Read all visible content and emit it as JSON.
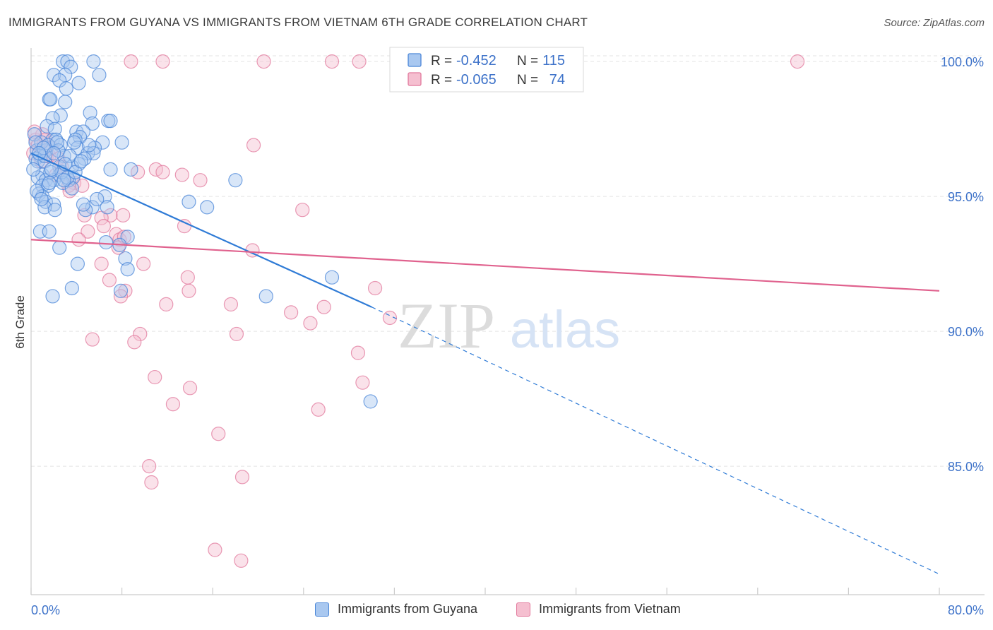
{
  "header": {
    "title": "IMMIGRANTS FROM GUYANA VS IMMIGRANTS FROM VIETNAM 6TH GRADE CORRELATION CHART",
    "source": "Source: ZipAtlas.com"
  },
  "watermark": {
    "zip": "ZIP",
    "atlas": "atlas"
  },
  "colors": {
    "blue": "#4a86d8",
    "blue_fill": "#a9c8f0",
    "blue_line": "#2f7bd6",
    "pink": "#e2789c",
    "pink_fill": "#f5bfd0",
    "pink_line": "#e0628e",
    "tick_label": "#3d72c9"
  },
  "stats_legend": {
    "r_label": "R =",
    "n_label": "N =",
    "rows": [
      {
        "series": "guyana",
        "r": "-0.452",
        "n": "115"
      },
      {
        "series": "vietnam",
        "r": "-0.065",
        "n": "74"
      }
    ]
  },
  "chart_data": {
    "type": "scatter",
    "title": "IMMIGRANTS FROM GUYANA VS IMMIGRANTS FROM VIETNAM 6TH GRADE CORRELATION CHART",
    "xlabel": "",
    "ylabel": "6th Grade",
    "xlim": [
      0,
      80
    ],
    "ylim": [
      80.5,
      100.5
    ],
    "x_tick_labels": {
      "min": "0.0%",
      "max": "80.0%"
    },
    "y_ticks": [
      {
        "value": 85,
        "label": "85.0%"
      },
      {
        "value": 90,
        "label": "90.0%"
      },
      {
        "value": 95,
        "label": "95.0%"
      },
      {
        "value": 100,
        "label": "100.0%"
      }
    ],
    "grid": "horizontal dashed",
    "series": [
      {
        "name": "Immigrants from Guyana",
        "key": "guyana",
        "r": -0.452,
        "n": 115,
        "trend": {
          "x0": 0,
          "y0": 96.6,
          "x1": 30,
          "y1": 90.9,
          "dashed_to": {
            "x": 80,
            "y": 81.0
          }
        },
        "points": [
          [
            2.8,
            100.0
          ],
          [
            3.2,
            100.0
          ],
          [
            5.5,
            100.0
          ],
          [
            3.5,
            99.8
          ],
          [
            2.0,
            99.5
          ],
          [
            3.0,
            99.5
          ],
          [
            6.0,
            99.5
          ],
          [
            2.5,
            99.3
          ],
          [
            4.2,
            99.2
          ],
          [
            3.1,
            99.0
          ],
          [
            1.6,
            98.6
          ],
          [
            1.7,
            98.6
          ],
          [
            3.0,
            98.5
          ],
          [
            5.2,
            98.1
          ],
          [
            2.6,
            98.0
          ],
          [
            1.9,
            97.9
          ],
          [
            6.8,
            97.8
          ],
          [
            7.0,
            97.8
          ],
          [
            5.4,
            97.7
          ],
          [
            1.4,
            97.6
          ],
          [
            2.1,
            97.5
          ],
          [
            4.0,
            97.4
          ],
          [
            4.6,
            97.4
          ],
          [
            0.3,
            97.3
          ],
          [
            4.3,
            97.2
          ],
          [
            1.9,
            97.1
          ],
          [
            2.2,
            97.1
          ],
          [
            3.9,
            97.1
          ],
          [
            6.3,
            97.0
          ],
          [
            8.0,
            97.0
          ],
          [
            2.6,
            96.9
          ],
          [
            4.1,
            96.8
          ],
          [
            5.6,
            96.8
          ],
          [
            0.5,
            96.7
          ],
          [
            1.3,
            96.7
          ],
          [
            5.0,
            96.6
          ],
          [
            5.5,
            96.6
          ],
          [
            0.8,
            96.5
          ],
          [
            2.9,
            96.5
          ],
          [
            0.4,
            96.4
          ],
          [
            4.7,
            96.4
          ],
          [
            0.6,
            96.3
          ],
          [
            1.2,
            96.3
          ],
          [
            4.2,
            96.2
          ],
          [
            2.5,
            96.1
          ],
          [
            3.6,
            96.1
          ],
          [
            8.8,
            96.0
          ],
          [
            7.0,
            96.0
          ],
          [
            1.0,
            95.8
          ],
          [
            2.5,
            95.8
          ],
          [
            0.6,
            95.7
          ],
          [
            3.7,
            95.7
          ],
          [
            1.3,
            95.6
          ],
          [
            2.0,
            95.6
          ],
          [
            3.3,
            95.6
          ],
          [
            2.8,
            95.5
          ],
          [
            1.0,
            95.4
          ],
          [
            1.5,
            95.4
          ],
          [
            3.6,
            95.3
          ],
          [
            0.7,
            95.1
          ],
          [
            1.0,
            95.0
          ],
          [
            6.5,
            95.0
          ],
          [
            1.3,
            94.8
          ],
          [
            13.9,
            94.8
          ],
          [
            2.0,
            94.7
          ],
          [
            6.7,
            94.6
          ],
          [
            1.2,
            94.6
          ],
          [
            5.4,
            94.6
          ],
          [
            15.5,
            94.6
          ],
          [
            4.8,
            94.5
          ],
          [
            2.1,
            94.5
          ],
          [
            0.8,
            93.7
          ],
          [
            1.6,
            93.7
          ],
          [
            8.5,
            93.5
          ],
          [
            6.6,
            93.3
          ],
          [
            7.8,
            93.2
          ],
          [
            2.5,
            93.1
          ],
          [
            8.3,
            92.7
          ],
          [
            8.5,
            92.3
          ],
          [
            4.1,
            92.5
          ],
          [
            18.0,
            95.6
          ],
          [
            26.5,
            92.0
          ],
          [
            3.6,
            91.6
          ],
          [
            7.9,
            91.5
          ],
          [
            1.9,
            91.3
          ],
          [
            20.7,
            91.3
          ],
          [
            29.9,
            87.4
          ],
          [
            1.2,
            96.5
          ],
          [
            0.9,
            97.0
          ],
          [
            1.5,
            96.9
          ],
          [
            2.4,
            96.7
          ],
          [
            3.4,
            96.5
          ],
          [
            0.2,
            96.0
          ],
          [
            1.7,
            95.9
          ],
          [
            2.7,
            95.9
          ],
          [
            3.2,
            95.7
          ],
          [
            0.5,
            95.2
          ],
          [
            0.9,
            94.9
          ],
          [
            4.6,
            94.7
          ],
          [
            5.8,
            94.9
          ],
          [
            3.0,
            96.2
          ],
          [
            2.3,
            97.0
          ],
          [
            1.8,
            96.0
          ],
          [
            0.4,
            97.0
          ],
          [
            1.1,
            96.8
          ],
          [
            3.8,
            97.0
          ],
          [
            5.1,
            96.9
          ],
          [
            2.0,
            96.6
          ],
          [
            0.7,
            96.6
          ],
          [
            1.6,
            95.5
          ],
          [
            2.9,
            95.6
          ],
          [
            3.9,
            95.9
          ],
          [
            4.4,
            96.3
          ]
        ]
      },
      {
        "name": "Immigrants from Vietnam",
        "key": "vietnam",
        "r": -0.065,
        "n": 74,
        "trend": {
          "x0": 0,
          "y0": 93.4,
          "x1": 80,
          "y1": 91.5
        },
        "points": [
          [
            8.8,
            100.0
          ],
          [
            11.6,
            100.0
          ],
          [
            20.5,
            100.0
          ],
          [
            26.5,
            100.0
          ],
          [
            28.9,
            100.0
          ],
          [
            67.5,
            100.0
          ],
          [
            0.4,
            97.1
          ],
          [
            1.1,
            97.1
          ],
          [
            1.3,
            97.1
          ],
          [
            19.6,
            96.9
          ],
          [
            0.2,
            96.6
          ],
          [
            1.4,
            96.5
          ],
          [
            1.6,
            96.5
          ],
          [
            2.4,
            96.4
          ],
          [
            11.0,
            96.0
          ],
          [
            11.6,
            95.9
          ],
          [
            9.4,
            95.9
          ],
          [
            13.3,
            95.8
          ],
          [
            14.9,
            95.6
          ],
          [
            3.8,
            95.5
          ],
          [
            3.3,
            95.4
          ],
          [
            4.5,
            95.4
          ],
          [
            3.4,
            95.2
          ],
          [
            23.9,
            94.5
          ],
          [
            4.7,
            94.3
          ],
          [
            7.0,
            94.3
          ],
          [
            8.1,
            94.3
          ],
          [
            6.2,
            94.2
          ],
          [
            6.4,
            93.9
          ],
          [
            13.5,
            93.9
          ],
          [
            5.0,
            93.7
          ],
          [
            4.2,
            93.4
          ],
          [
            7.5,
            93.6
          ],
          [
            7.8,
            93.4
          ],
          [
            8.2,
            93.5
          ],
          [
            19.5,
            93.0
          ],
          [
            7.7,
            93.1
          ],
          [
            6.2,
            92.5
          ],
          [
            9.9,
            92.5
          ],
          [
            13.8,
            92.0
          ],
          [
            6.9,
            91.9
          ],
          [
            13.9,
            91.5
          ],
          [
            8.3,
            91.5
          ],
          [
            30.3,
            91.6
          ],
          [
            7.9,
            91.3
          ],
          [
            11.9,
            91.0
          ],
          [
            17.6,
            91.0
          ],
          [
            25.8,
            90.9
          ],
          [
            22.9,
            90.7
          ],
          [
            31.6,
            90.5
          ],
          [
            24.6,
            90.3
          ],
          [
            9.6,
            89.9
          ],
          [
            18.1,
            89.9
          ],
          [
            5.4,
            89.7
          ],
          [
            9.1,
            89.6
          ],
          [
            28.8,
            89.2
          ],
          [
            10.9,
            88.3
          ],
          [
            29.2,
            88.1
          ],
          [
            14.0,
            87.9
          ],
          [
            12.5,
            87.3
          ],
          [
            25.3,
            87.1
          ],
          [
            16.5,
            86.2
          ],
          [
            10.4,
            85.0
          ],
          [
            18.6,
            84.6
          ],
          [
            10.6,
            84.4
          ],
          [
            16.2,
            81.9
          ],
          [
            18.5,
            81.5
          ],
          [
            0.6,
            96.9
          ],
          [
            1.8,
            96.8
          ],
          [
            0.9,
            96.3
          ],
          [
            2.7,
            96.1
          ],
          [
            2.2,
            95.8
          ],
          [
            1.0,
            97.3
          ],
          [
            0.3,
            97.4
          ]
        ]
      }
    ]
  },
  "bottom_legend": {
    "items": [
      {
        "series": "guyana",
        "label": "Immigrants from Guyana"
      },
      {
        "series": "vietnam",
        "label": "Immigrants from Vietnam"
      }
    ]
  }
}
